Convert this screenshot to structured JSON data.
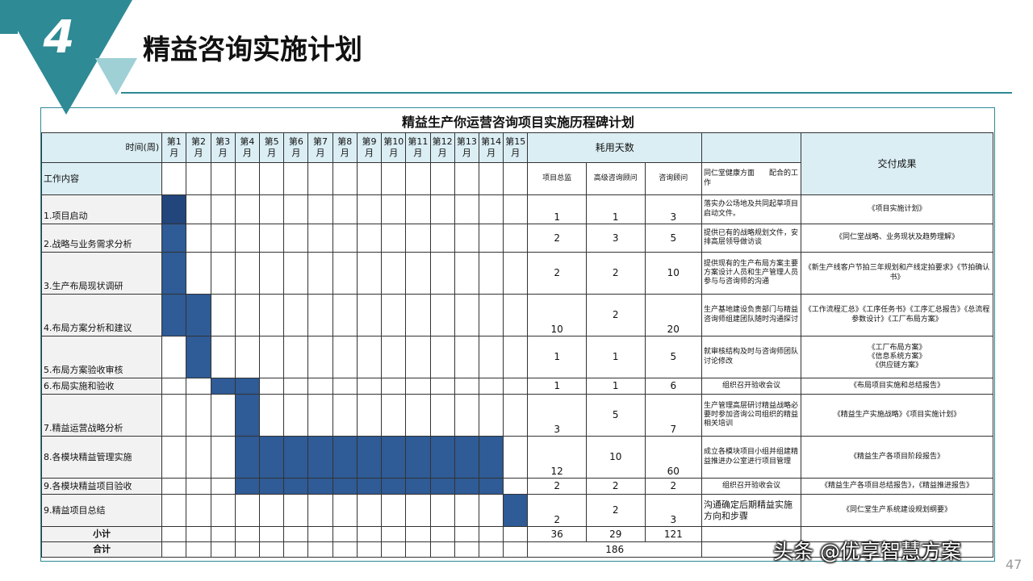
{
  "header": {
    "section_number": "4",
    "title": "精益咨询实施计划"
  },
  "table": {
    "title": "精益生产你运营咨询项目实施历程碑计划",
    "time_label": "时间(周)",
    "work_label": "工作内容",
    "weeks": [
      {
        "top": "第1",
        "bottom": "月"
      },
      {
        "top": "第2",
        "bottom": "月"
      },
      {
        "top": "第3",
        "bottom": "月"
      },
      {
        "top": "第4",
        "bottom": "月"
      },
      {
        "top": "第5",
        "bottom": "月"
      },
      {
        "top": "第6",
        "bottom": "月"
      },
      {
        "top": "第7",
        "bottom": "月"
      },
      {
        "top": "第8",
        "bottom": "月"
      },
      {
        "top": "第9",
        "bottom": "月"
      },
      {
        "top": "第10",
        "bottom": "月"
      },
      {
        "top": "第11",
        "bottom": "月"
      },
      {
        "top": "第12",
        "bottom": "月"
      },
      {
        "top": "第13",
        "bottom": "月"
      },
      {
        "top": "第14",
        "bottom": "月"
      },
      {
        "top": "第15",
        "bottom": "月"
      }
    ],
    "days_label": "耗用天数",
    "role1": "项目总监",
    "role2": "高级咨询顾问",
    "role3": "咨询顾问",
    "coop_label": "同仁堂健康方面　　配合的工作",
    "deliv_label": "交付成果",
    "rows": [
      {
        "task": "1.项目启动",
        "d1": "1",
        "d2": "1",
        "d3": "3",
        "coop": "落实办公场地及共同起草项目启动文件。",
        "deliv": "《项目实施计划》"
      },
      {
        "task": "2.战略与业务需求分析",
        "d1": "2",
        "d2": "3",
        "d3": "5",
        "coop": "提供已有的战略规划文件，安排高层领导做访谈",
        "deliv": "《同仁堂战略、业务现状及趋势理解》"
      },
      {
        "task": "3.生产布局现状调研",
        "d1": "2",
        "d2": "2",
        "d3": "10",
        "coop": "提供现有的生产布局方案主要方案设计人员和生产管理人员参与与咨询师的沟通",
        "deliv": "《新生产线客户节拍三年规划和产线定拍要求》《节拍确认书》"
      },
      {
        "task": "4.布局方案分析和建议",
        "d1": "10",
        "d2": "2",
        "d3": "20",
        "coop": "生产基地建设负责部门与精益咨询师组建团队随时沟通探讨",
        "deliv": "《工作流程汇总》《工序任务书》《工序汇总报告》《总流程参数设计》《工厂布局方案》"
      },
      {
        "task": "5.布局方案验收审核",
        "d1": "1",
        "d2": "1",
        "d3": "5",
        "coop": "就审核结构及时与咨询师团队讨论修改",
        "deliv": [
          "《工厂布局方案》",
          "《信息系统方案》",
          "《供应链方案》"
        ]
      },
      {
        "task": "6.布局实施和验收",
        "d1": "1",
        "d2": "1",
        "d3": "6",
        "coop": "组织召开验收会议",
        "deliv": "《布局项目实施和总结报告》"
      },
      {
        "task": "7.精益运营战略分析",
        "d1": "3",
        "d2": "5",
        "d3": "7",
        "coop": "生产管理高层研讨精益战略必要时参加咨询公司组织的精益相关培训",
        "deliv": "《精益生产实施战略》《项目实施计划》"
      },
      {
        "task": "8.各模块精益管理实施",
        "d1": "12",
        "d2": "10",
        "d3": "60",
        "coop": "成立各模块项目小组并组建精益推进办公室进行项目管理",
        "deliv": "《精益生产各项目阶段报告》"
      },
      {
        "task": "9.各模块精益项目验收",
        "d1": "2",
        "d2": "2",
        "d3": "2",
        "coop": "组织召开验收会议",
        "deliv": "《精益生产各项目总结报告》，《精益推进报告》"
      },
      {
        "task": "9.精益项目总结",
        "d1": "2",
        "d2": "2",
        "d3": "3",
        "coop": "沟通确定后期精益实施方向和步骤",
        "deliv": "《同仁堂生产系统建设规划纲要》"
      }
    ],
    "subtotal_label": "小计",
    "subtotal": {
      "d1": "36",
      "d2": "29",
      "d3": "121"
    },
    "total_label": "合计",
    "total": "186"
  },
  "watermark": "头条 @优享智慧方案",
  "page_number": "47",
  "colors": {
    "accent": "#2e8a94",
    "accent_light": "#9ed0d6",
    "bar": "#2f5b96",
    "header_bg": "#dbeef4"
  }
}
